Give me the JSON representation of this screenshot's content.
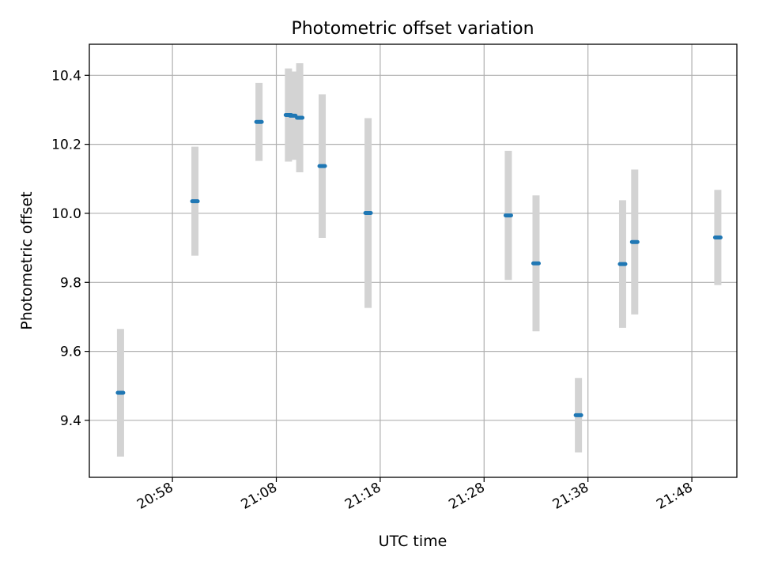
{
  "chart_data": {
    "type": "scatter",
    "title": "Photometric offset variation",
    "xlabel": "UTC time",
    "ylabel": "Photometric offset",
    "x_ticks": [
      "20:58",
      "21:08",
      "21:18",
      "21:28",
      "21:38",
      "21:48"
    ],
    "y_ticks": [
      "9.4",
      "9.6",
      "9.8",
      "10.0",
      "10.2",
      "10.4"
    ],
    "xlim": [
      "20:50:00",
      "21:52:20"
    ],
    "ylim": [
      9.235,
      10.49
    ],
    "grid": true,
    "colors": {
      "point": "#1f77b4",
      "errorbar": "#d3d3d3",
      "grid": "#b0b0b0"
    },
    "points": [
      {
        "x": "20:53:00",
        "y": 9.48,
        "err": 0.185
      },
      {
        "x": "21:00:10",
        "y": 10.035,
        "err": 0.158
      },
      {
        "x": "21:06:20",
        "y": 10.265,
        "err": 0.113
      },
      {
        "x": "21:09:10",
        "y": 10.285,
        "err": 0.135
      },
      {
        "x": "21:09:35",
        "y": 10.283,
        "err": 0.128
      },
      {
        "x": "21:10:15",
        "y": 10.277,
        "err": 0.158
      },
      {
        "x": "21:12:25",
        "y": 10.137,
        "err": 0.208
      },
      {
        "x": "21:16:50",
        "y": 10.001,
        "err": 0.275
      },
      {
        "x": "21:30:20",
        "y": 9.994,
        "err": 0.187
      },
      {
        "x": "21:33:00",
        "y": 9.855,
        "err": 0.197
      },
      {
        "x": "21:37:05",
        "y": 9.415,
        "err": 0.108
      },
      {
        "x": "21:41:20",
        "y": 9.853,
        "err": 0.185
      },
      {
        "x": "21:42:30",
        "y": 9.917,
        "err": 0.21
      },
      {
        "x": "21:50:30",
        "y": 9.93,
        "err": 0.138
      }
    ]
  }
}
